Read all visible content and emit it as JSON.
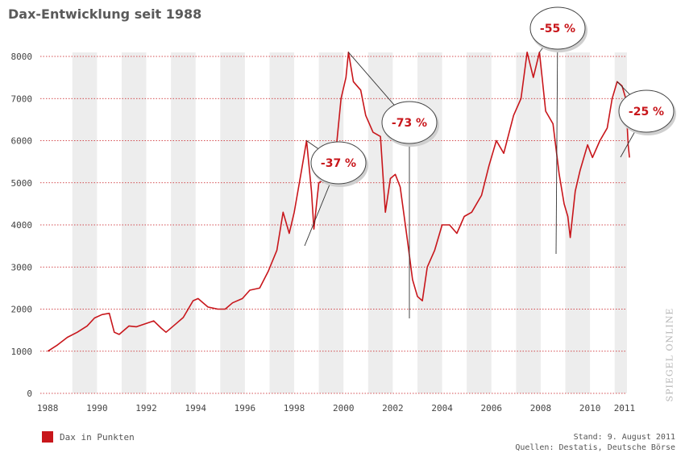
{
  "page": {
    "title": "Dax-Entwicklung seit 1988",
    "legend_label": "Dax in Punkten",
    "stand": "Stand: 9. August 2011",
    "sources": "Quellen: Destatis, Deutsche Börse",
    "brand": "SPIEGEL ONLINE"
  },
  "colors": {
    "series": "#c8161b",
    "band": "#ededed",
    "grid": "#c8161b",
    "annotation_text": "#c8161b",
    "annotation_line": "#333333"
  },
  "chart_data": {
    "type": "line",
    "title": "Dax-Entwicklung seit 1988",
    "xlabel": "",
    "ylabel": "",
    "xlim": [
      1987.7,
      2011.5
    ],
    "ylim": [
      0,
      8000
    ],
    "grid": true,
    "legend": "bottom-left",
    "x_ticks": [
      "1988",
      "1990",
      "1992",
      "1994",
      "1996",
      "1998",
      "2000",
      "2002",
      "2004",
      "2006",
      "2008",
      "2010",
      "2011"
    ],
    "y_ticks": [
      "0",
      "1000",
      "2000",
      "3000",
      "4000",
      "5000",
      "6000",
      "7000",
      "8000"
    ],
    "series": [
      {
        "name": "Dax in Punkten",
        "points": [
          [
            1988.0,
            1000
          ],
          [
            1988.4,
            1150
          ],
          [
            1988.8,
            1330
          ],
          [
            1989.2,
            1450
          ],
          [
            1989.6,
            1600
          ],
          [
            1989.9,
            1790
          ],
          [
            1990.2,
            1870
          ],
          [
            1990.5,
            1900
          ],
          [
            1990.7,
            1450
          ],
          [
            1990.9,
            1400
          ],
          [
            1991.3,
            1600
          ],
          [
            1991.6,
            1580
          ],
          [
            1992.0,
            1660
          ],
          [
            1992.3,
            1720
          ],
          [
            1992.6,
            1550
          ],
          [
            1992.8,
            1450
          ],
          [
            1993.2,
            1650
          ],
          [
            1993.5,
            1800
          ],
          [
            1993.9,
            2200
          ],
          [
            1994.1,
            2250
          ],
          [
            1994.5,
            2050
          ],
          [
            1994.9,
            2000
          ],
          [
            1995.2,
            2000
          ],
          [
            1995.5,
            2150
          ],
          [
            1995.9,
            2250
          ],
          [
            1996.2,
            2450
          ],
          [
            1996.6,
            2500
          ],
          [
            1996.95,
            2900
          ],
          [
            1997.3,
            3400
          ],
          [
            1997.55,
            4300
          ],
          [
            1997.8,
            3800
          ],
          [
            1998.0,
            4300
          ],
          [
            1998.3,
            5300
          ],
          [
            1998.5,
            6000
          ],
          [
            1998.7,
            4800
          ],
          [
            1998.8,
            3900
          ],
          [
            1999.0,
            5000
          ],
          [
            1999.3,
            5100
          ],
          [
            1999.5,
            5300
          ],
          [
            1999.7,
            5800
          ],
          [
            1999.9,
            7000
          ],
          [
            2000.1,
            7500
          ],
          [
            2000.2,
            8100
          ],
          [
            2000.4,
            7400
          ],
          [
            2000.7,
            7200
          ],
          [
            2000.9,
            6600
          ],
          [
            2001.2,
            6200
          ],
          [
            2001.5,
            6100
          ],
          [
            2001.7,
            4300
          ],
          [
            2001.9,
            5100
          ],
          [
            2002.1,
            5200
          ],
          [
            2002.3,
            4900
          ],
          [
            2002.6,
            3600
          ],
          [
            2002.8,
            2700
          ],
          [
            2003.0,
            2300
          ],
          [
            2003.2,
            2200
          ],
          [
            2003.4,
            3000
          ],
          [
            2003.7,
            3400
          ],
          [
            2004.0,
            4000
          ],
          [
            2004.3,
            4000
          ],
          [
            2004.6,
            3800
          ],
          [
            2004.9,
            4200
          ],
          [
            2005.2,
            4300
          ],
          [
            2005.6,
            4700
          ],
          [
            2005.9,
            5400
          ],
          [
            2006.2,
            6000
          ],
          [
            2006.5,
            5700
          ],
          [
            2006.9,
            6600
          ],
          [
            2007.2,
            7000
          ],
          [
            2007.45,
            8100
          ],
          [
            2007.7,
            7500
          ],
          [
            2007.95,
            8100
          ],
          [
            2008.2,
            6700
          ],
          [
            2008.5,
            6400
          ],
          [
            2008.75,
            5200
          ],
          [
            2008.95,
            4500
          ],
          [
            2009.1,
            4200
          ],
          [
            2009.2,
            3700
          ],
          [
            2009.4,
            4800
          ],
          [
            2009.6,
            5300
          ],
          [
            2009.9,
            5900
          ],
          [
            2010.1,
            5600
          ],
          [
            2010.4,
            6000
          ],
          [
            2010.7,
            6300
          ],
          [
            2010.9,
            7000
          ],
          [
            2011.1,
            7400
          ],
          [
            2011.3,
            7300
          ],
          [
            2011.45,
            7000
          ],
          [
            2011.55,
            5900
          ],
          [
            2011.6,
            5600
          ]
        ]
      }
    ],
    "annotations": [
      {
        "label": "-37 %",
        "anchor_x": 1998.5,
        "anchor_y": 6000
      },
      {
        "label": "-73 %",
        "anchor_x": 2000.2,
        "anchor_y": 8100
      },
      {
        "label": "-55 %",
        "anchor_x": 2007.95,
        "anchor_y": 8100
      },
      {
        "label": "-25 %",
        "anchor_x": 2011.1,
        "anchor_y": 7400
      }
    ]
  }
}
